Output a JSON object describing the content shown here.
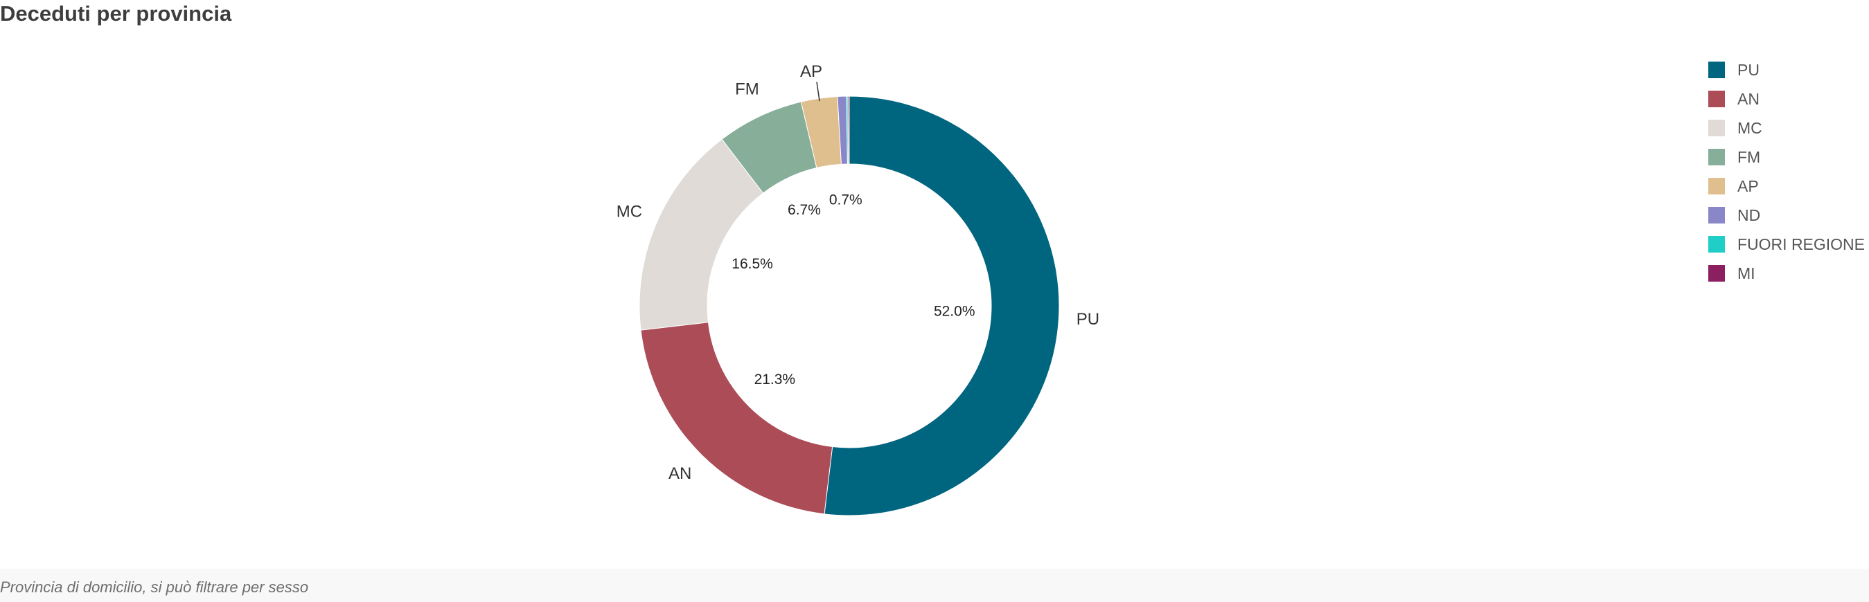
{
  "title": "Deceduti per provincia",
  "footer_note": "Provincia di domicilio, si può filtrare per sesso",
  "chart_data": {
    "type": "pie",
    "variant": "donut",
    "title": "Deceduti per provincia",
    "legend_placement": "top-right",
    "slices": [
      {
        "label": "PU",
        "value": 52.0,
        "color": "#00657f",
        "pct_label": "52.0%"
      },
      {
        "label": "AN",
        "value": 21.3,
        "color": "#ab4c57",
        "pct_label": "21.3%"
      },
      {
        "label": "MC",
        "value": 16.5,
        "color": "#e0dbd6",
        "pct_label": "16.5%"
      },
      {
        "label": "FM",
        "value": 6.7,
        "color": "#86ae99",
        "pct_label": "6.7%"
      },
      {
        "label": "AP",
        "value": 2.8,
        "color": "#e0bf8e",
        "pct_label": ""
      },
      {
        "label": "ND",
        "value": 0.7,
        "color": "#8a87c9",
        "pct_label": "0.7%"
      },
      {
        "label": "FUORI REGIONE",
        "value": 0.1,
        "color": "#1fcec6",
        "pct_label": ""
      },
      {
        "label": "MI",
        "value": 0.1,
        "color": "#8b1f5f",
        "pct_label": ""
      }
    ]
  }
}
